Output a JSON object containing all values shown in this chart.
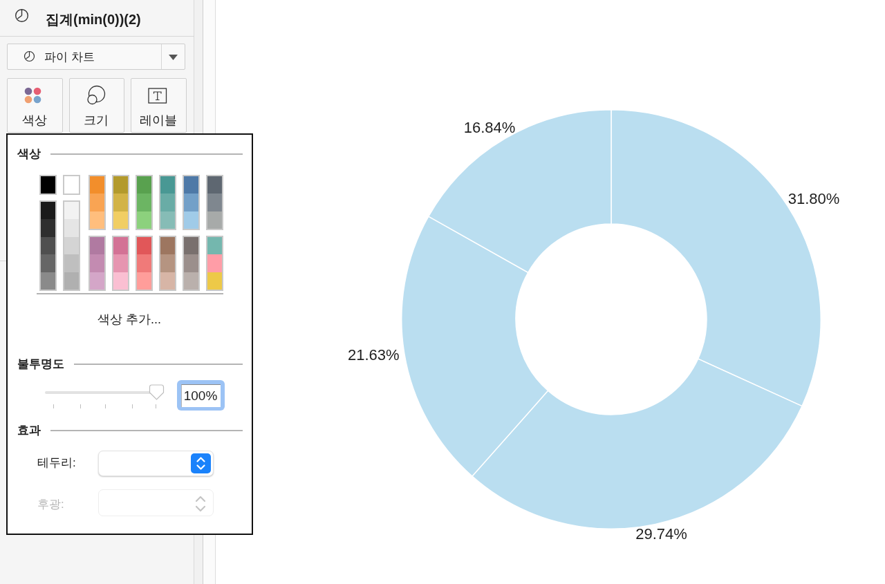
{
  "chart_data": [
    {
      "type": "other",
      "title": "집계(min(0))(2)",
      "annotations": [
        "파이 차트",
        "색상",
        "크기",
        "레이블",
        "색상",
        "색상 추가...",
        "불투명도",
        "100%",
        "효과",
        "테두리:",
        "후광:"
      ]
    },
    {
      "type": "donut",
      "categories": [
        null,
        null,
        null,
        null
      ],
      "values": [
        31.8,
        29.74,
        21.63,
        16.84
      ],
      "colors": [
        "#badef0",
        "#badef0",
        "#badef0",
        "#badef0"
      ],
      "value_labels": [
        "31.80%",
        "29.74%",
        "21.63%",
        "16.84%"
      ]
    }
  ]
}
